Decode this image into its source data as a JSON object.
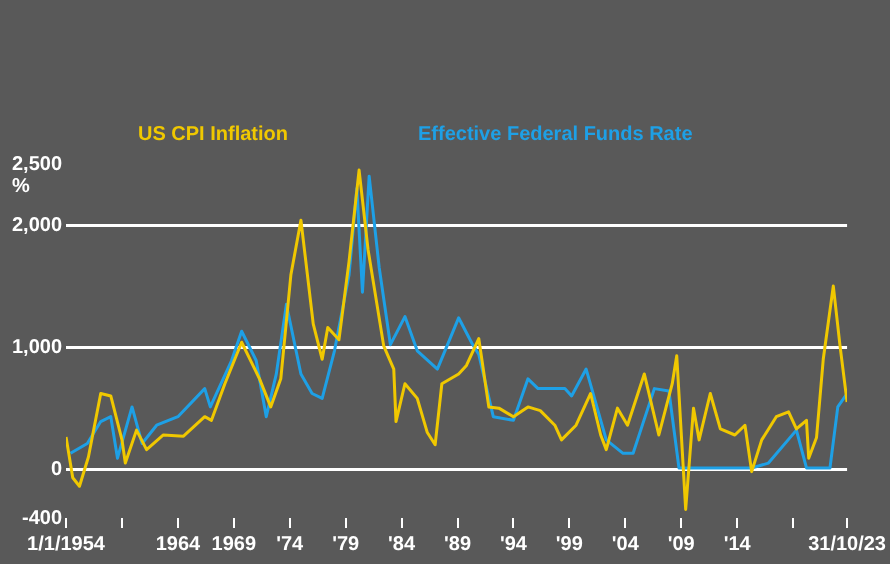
{
  "chart_data": {
    "type": "line",
    "ylabel": "%",
    "legend": "top",
    "grid": "y",
    "marker": "none",
    "ylim": [
      -400,
      2500
    ],
    "yticks": [
      {
        "value": -400,
        "label": "-400"
      },
      0,
      {
        "value": 1000,
        "label": "1,000"
      },
      {
        "value": 2000,
        "label": "2,000"
      },
      {
        "value": 2500,
        "label": "2,500"
      }
    ],
    "xlim": [
      1954,
      2023.83
    ],
    "xticks": [
      {
        "value": 1954,
        "label": "1/1/1954"
      },
      {
        "value": 1959,
        "label": null
      },
      1964,
      1969,
      {
        "value": 1974,
        "label": "'74"
      },
      {
        "value": 1979,
        "label": "'79"
      },
      {
        "value": 1984,
        "label": "'84"
      },
      {
        "value": 1989,
        "label": "'89"
      },
      {
        "value": 1994,
        "label": "'94"
      },
      {
        "value": 1999,
        "label": "'99"
      },
      {
        "value": 2004,
        "label": "'04"
      },
      {
        "value": 2009,
        "label": "'09"
      },
      {
        "value": 2014,
        "label": "'14"
      },
      {
        "value": 2019,
        "label": null
      },
      {
        "value": 2023.83,
        "label": "31/10/23"
      }
    ],
    "series": [
      {
        "name": "US CPI Inflation",
        "color": "#f0c800",
        "x": [
          1954.0,
          1954.6,
          1955.2,
          1956.0,
          1957.1,
          1958.0,
          1959.0,
          1959.3,
          1960.3,
          1961.2,
          1962.7,
          1964.5,
          1966.4,
          1967.0,
          1968.2,
          1969.7,
          1971.3,
          1972.3,
          1973.2,
          1974.1,
          1975.0,
          1976.1,
          1976.9,
          1977.4,
          1978.4,
          1979.3,
          1980.2,
          1981.0,
          1982.4,
          1983.3,
          1983.5,
          1984.3,
          1985.4,
          1986.3,
          1987.0,
          1987.6,
          1989.1,
          1989.8,
          1990.9,
          1991.8,
          1992.7,
          1994.0,
          1995.3,
          1996.4,
          1997.7,
          1998.3,
          1999.6,
          2000.9,
          2001.8,
          2002.3,
          2003.3,
          2004.2,
          2005.7,
          2007.0,
          2008.2,
          2008.6,
          2009.4,
          2010.1,
          2010.6,
          2011.6,
          2012.5,
          2013.8,
          2014.7,
          2015.3,
          2016.2,
          2017.5,
          2018.6,
          2019.3,
          2020.2,
          2020.4,
          2021.1,
          2021.7,
          2022.6,
          2023.2,
          2023.83
        ],
        "values": [
          264,
          -70,
          -140,
          100,
          620,
          600,
          240,
          50,
          320,
          160,
          280,
          270,
          430,
          400,
          700,
          1040,
          740,
          510,
          740,
          1590,
          2040,
          1190,
          900,
          1160,
          1060,
          1700,
          2450,
          1800,
          1010,
          820,
          390,
          700,
          580,
          300,
          200,
          700,
          780,
          850,
          1070,
          510,
          500,
          430,
          510,
          480,
          360,
          240,
          360,
          620,
          280,
          160,
          500,
          360,
          780,
          280,
          700,
          930,
          -330,
          500,
          240,
          620,
          330,
          280,
          360,
          -20,
          240,
          430,
          470,
          330,
          400,
          90,
          260,
          900,
          1500,
          1010,
          550
        ]
      },
      {
        "name": "Effective Federal Funds Rate",
        "color": "#1ea0e6",
        "x": [
          1954.4,
          1955.9,
          1957.1,
          1958.0,
          1958.6,
          1959.9,
          1960.8,
          1962.1,
          1964.0,
          1966.4,
          1966.9,
          1968.8,
          1969.7,
          1971.0,
          1971.9,
          1972.8,
          1973.7,
          1975.0,
          1976.0,
          1976.9,
          1978.0,
          1979.3,
          1980.0,
          1980.5,
          1981.1,
          1982.0,
          1983.0,
          1984.3,
          1985.4,
          1987.2,
          1989.1,
          1990.3,
          1990.9,
          1992.2,
          1994.0,
          1995.3,
          1996.2,
          1998.6,
          1999.2,
          2000.5,
          2001.0,
          2002.3,
          2003.8,
          2004.7,
          2006.6,
          2007.9,
          2008.8,
          2015.3,
          2016.8,
          2019.3,
          2020.2,
          2022.3,
          2023.0,
          2023.83
        ],
        "values": [
          130,
          210,
          390,
          430,
          90,
          510,
          210,
          360,
          430,
          660,
          510,
          890,
          1130,
          890,
          430,
          780,
          1350,
          780,
          620,
          580,
          970,
          1590,
          2300,
          1450,
          2400,
          1650,
          1020,
          1250,
          970,
          820,
          1240,
          1030,
          940,
          430,
          400,
          740,
          660,
          660,
          600,
          820,
          660,
          240,
          130,
          130,
          660,
          640,
          10,
          10,
          50,
          320,
          10,
          10,
          510,
          620
        ]
      }
    ]
  }
}
